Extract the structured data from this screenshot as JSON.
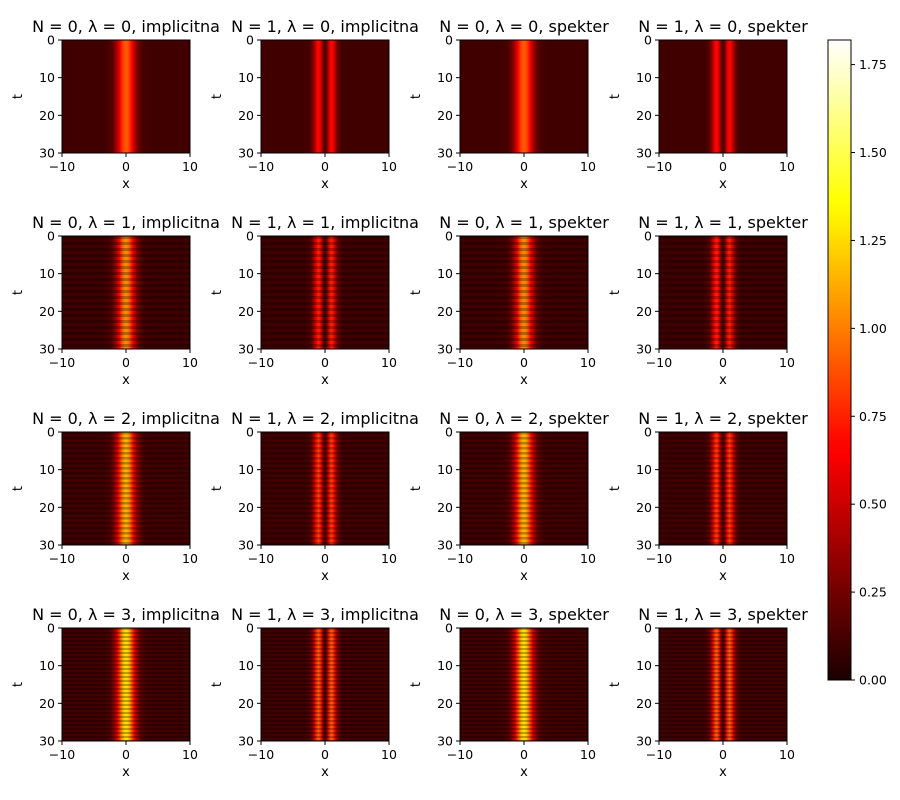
{
  "chart_data": {
    "type": "heatmap",
    "colormap": "hot",
    "layout": "4x4 grid",
    "colorbar": {
      "range": [
        0.0,
        1.82
      ],
      "ticks": [
        0.0,
        0.25,
        0.5,
        0.75,
        1.0,
        1.25,
        1.5,
        1.75
      ],
      "tick_labels": [
        "0.00",
        "0.25",
        "0.50",
        "0.75",
        "1.00",
        "1.25",
        "1.50",
        "1.75"
      ]
    },
    "axes": {
      "xlabel": "x",
      "ylabel": "t",
      "xlim": [
        -10,
        10
      ],
      "ylim": [
        30,
        0
      ],
      "x_ticks": [
        -10,
        0,
        10
      ],
      "x_tick_labels": [
        "−10",
        "0",
        "10"
      ],
      "y_ticks": [
        0,
        10,
        20,
        30
      ],
      "y_tick_labels": [
        "0",
        "10",
        "20",
        "30"
      ]
    },
    "title_parts": {
      "n_prefix": "N = ",
      "lambda_prefix": ", λ = ",
      "sep": ", "
    },
    "panels": [
      {
        "N": 0,
        "lambda": 0,
        "method": "implicitna"
      },
      {
        "N": 1,
        "lambda": 0,
        "method": "implicitna"
      },
      {
        "N": 0,
        "lambda": 0,
        "method": "spekter"
      },
      {
        "N": 1,
        "lambda": 0,
        "method": "spekter"
      },
      {
        "N": 0,
        "lambda": 1,
        "method": "implicitna"
      },
      {
        "N": 1,
        "lambda": 1,
        "method": "implicitna"
      },
      {
        "N": 0,
        "lambda": 1,
        "method": "spekter"
      },
      {
        "N": 1,
        "lambda": 1,
        "method": "spekter"
      },
      {
        "N": 0,
        "lambda": 2,
        "method": "implicitna"
      },
      {
        "N": 1,
        "lambda": 2,
        "method": "implicitna"
      },
      {
        "N": 0,
        "lambda": 2,
        "method": "spekter"
      },
      {
        "N": 1,
        "lambda": 2,
        "method": "spekter"
      },
      {
        "N": 0,
        "lambda": 3,
        "method": "implicitna"
      },
      {
        "N": 1,
        "lambda": 3,
        "method": "implicitna"
      },
      {
        "N": 0,
        "lambda": 3,
        "method": "spekter"
      },
      {
        "N": 1,
        "lambda": 3,
        "method": "spekter"
      }
    ]
  }
}
